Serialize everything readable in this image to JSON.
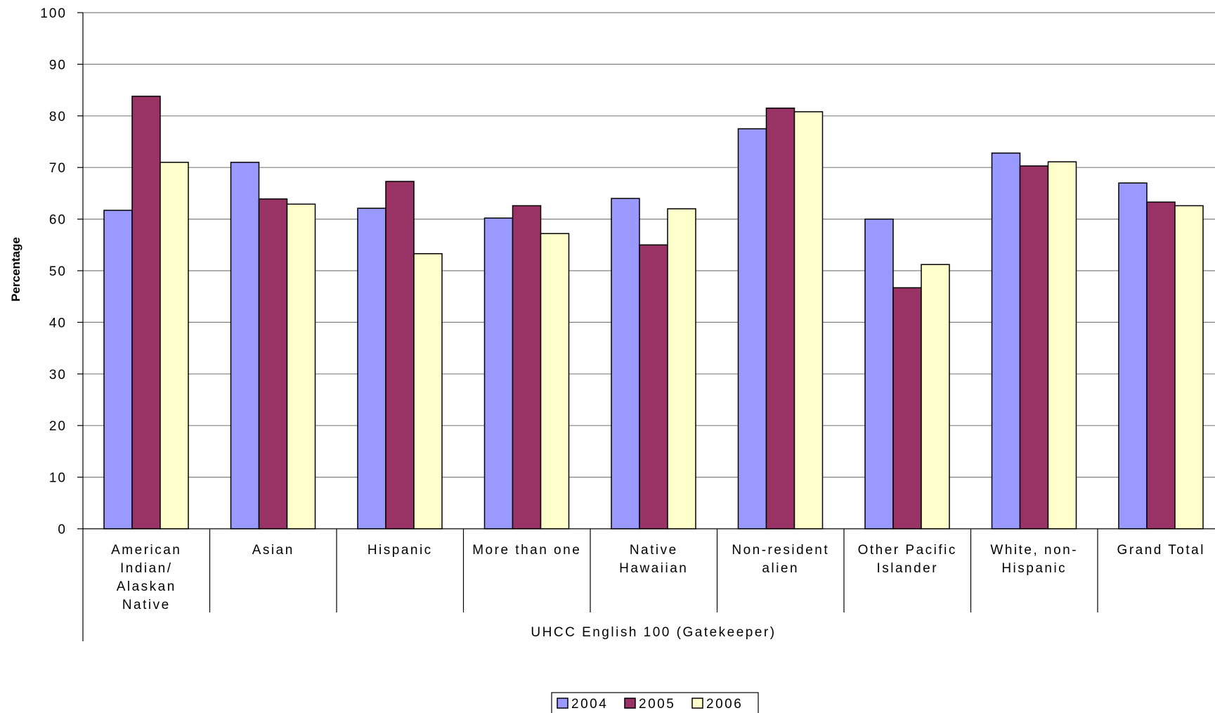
{
  "chart_data": {
    "type": "bar",
    "title": "",
    "xlabel": "UHCC English 100 (Gatekeeper)",
    "ylabel": "Percentage",
    "ylim": [
      0,
      100
    ],
    "yticks": [
      "0",
      "10",
      "20",
      "30",
      "40",
      "50",
      "60",
      "70",
      "80",
      "90",
      "100"
    ],
    "grid": true,
    "legend_position": "bottom",
    "categories": [
      "American Indian/ Alaskan Native",
      "Asian",
      "Hispanic",
      "More than one",
      "Native Hawaiian",
      "Non-resident alien",
      "Other Pacific Islander",
      "White, non-Hispanic",
      "Grand Total"
    ],
    "category_label_lines": [
      [
        "American",
        "Indian/",
        "Alaskan",
        "Native"
      ],
      [
        "Asian"
      ],
      [
        "Hispanic"
      ],
      [
        "More than one"
      ],
      [
        "Native",
        "Hawaiian"
      ],
      [
        "Non-resident",
        "alien"
      ],
      [
        "Other Pacific",
        "Islander"
      ],
      [
        "White, non-",
        "Hispanic"
      ],
      [
        "Grand Total"
      ]
    ],
    "series": [
      {
        "name": "2004",
        "color": "#9999ff",
        "values": [
          61.7,
          71.0,
          62.1,
          60.2,
          64.0,
          77.5,
          60.0,
          72.8,
          67.0
        ]
      },
      {
        "name": "2005",
        "color": "#993366",
        "values": [
          83.8,
          63.9,
          67.3,
          62.6,
          55.0,
          81.5,
          46.7,
          70.3,
          63.3
        ]
      },
      {
        "name": "2006",
        "color": "#ffffcc",
        "values": [
          71.0,
          62.9,
          53.3,
          57.2,
          62.0,
          80.8,
          51.2,
          71.1,
          62.6
        ]
      }
    ]
  }
}
